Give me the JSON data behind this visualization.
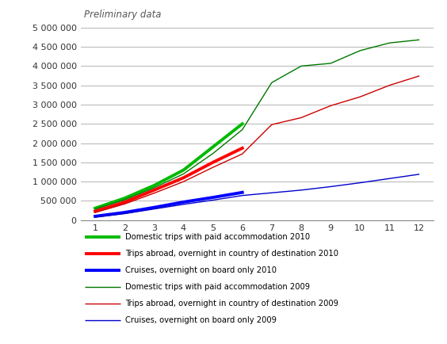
{
  "preliminary_text": "Preliminary data",
  "xlim": [
    0.5,
    12.5
  ],
  "ylim": [
    0,
    5000000
  ],
  "yticks": [
    0,
    500000,
    1000000,
    1500000,
    2000000,
    2500000,
    3000000,
    3500000,
    4000000,
    4500000,
    5000000
  ],
  "xticks": [
    1,
    2,
    3,
    4,
    5,
    6,
    7,
    8,
    9,
    10,
    11,
    12
  ],
  "series": {
    "domestic_2010": {
      "x": [
        1,
        2,
        3,
        4,
        5,
        6
      ],
      "y": [
        310000,
        570000,
        900000,
        1300000,
        1900000,
        2500000
      ],
      "color": "#00bb00",
      "linewidth": 2.8,
      "label": "Domestic trips with paid accommodation 2010"
    },
    "abroad_2010": {
      "x": [
        1,
        2,
        3,
        4,
        5,
        6
      ],
      "y": [
        230000,
        470000,
        780000,
        1100000,
        1500000,
        1870000
      ],
      "color": "#ff0000",
      "linewidth": 2.8,
      "label": "Trips abroad, overnight in country of destination 2010"
    },
    "cruises_2010": {
      "x": [
        1,
        2,
        3,
        4,
        5,
        6
      ],
      "y": [
        100000,
        200000,
        330000,
        470000,
        590000,
        720000
      ],
      "color": "#0000ff",
      "linewidth": 2.8,
      "label": "Cruises, overnight on board only 2010"
    },
    "domestic_2009": {
      "x": [
        1,
        2,
        3,
        4,
        5,
        6,
        7,
        8,
        9,
        10,
        11,
        12
      ],
      "y": [
        290000,
        530000,
        840000,
        1200000,
        1730000,
        2350000,
        3570000,
        4000000,
        4070000,
        4400000,
        4600000,
        4680000
      ],
      "color": "#007700",
      "linewidth": 1.0,
      "label": "Domestic trips with paid accommodation 2009"
    },
    "abroad_2009": {
      "x": [
        1,
        2,
        3,
        4,
        5,
        6,
        7,
        8,
        9,
        10,
        11,
        12
      ],
      "y": [
        200000,
        420000,
        700000,
        1000000,
        1370000,
        1720000,
        2480000,
        2660000,
        2970000,
        3200000,
        3500000,
        3740000
      ],
      "color": "#cc0000",
      "linewidth": 1.0,
      "label": "Trips abroad, overnight in country of destination 2009"
    },
    "cruises_2009": {
      "x": [
        1,
        2,
        3,
        4,
        5,
        6,
        7,
        8,
        9,
        10,
        11,
        12
      ],
      "y": [
        80000,
        170000,
        290000,
        410000,
        520000,
        640000,
        710000,
        780000,
        870000,
        970000,
        1080000,
        1190000
      ],
      "color": "#0000cc",
      "linewidth": 1.0,
      "label": "Cruises, overnight on board only 2009"
    }
  },
  "legend_order": [
    "domestic_2010",
    "abroad_2010",
    "cruises_2010",
    "domestic_2009",
    "abroad_2009",
    "cruises_2009"
  ],
  "background_color": "#ffffff",
  "grid_color": "#bbbbbb",
  "figsize": [
    5.64,
    4.34
  ],
  "dpi": 100
}
